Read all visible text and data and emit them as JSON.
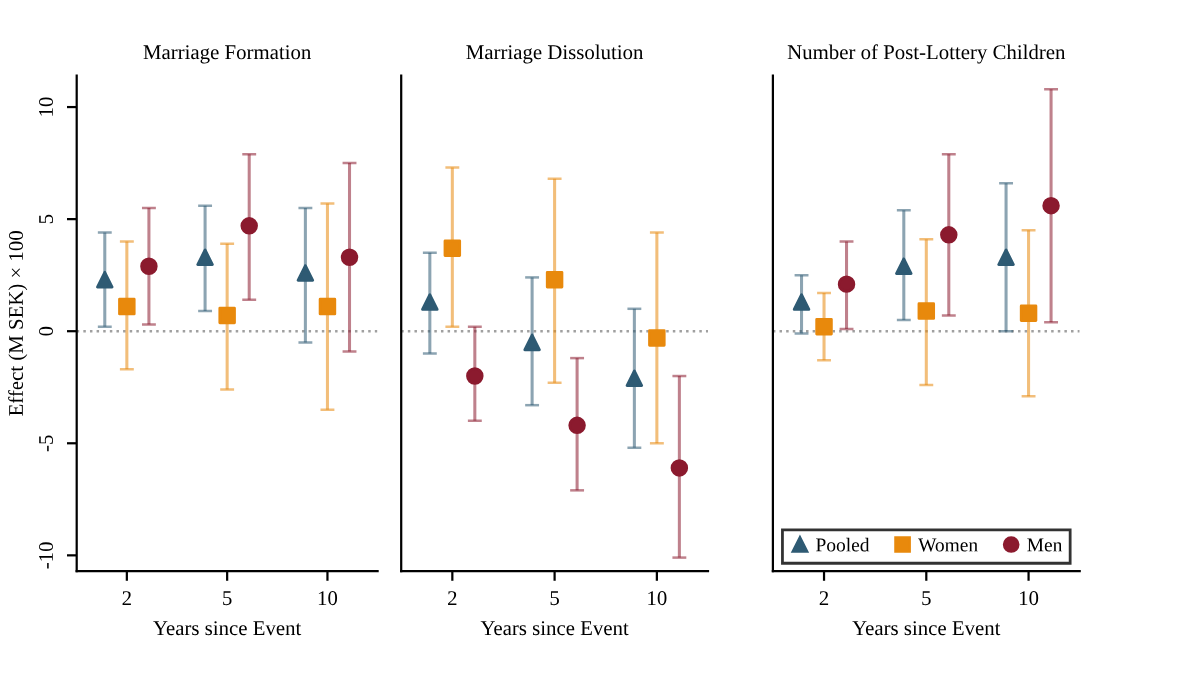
{
  "chart_data": [
    {
      "type": "scatter",
      "title": "Marriage Formation",
      "xlabel": "Years since Event",
      "ylabel": "Effect (M SEK) × 100",
      "categories": [
        "2",
        "5",
        "10"
      ],
      "ylim": [
        -10.7,
        11.4
      ],
      "yticks": [
        -10,
        -5,
        0,
        5,
        10
      ],
      "grid": false,
      "ref_lines": [
        {
          "axis": "y",
          "value": 0,
          "color": "#a0a0a0",
          "line_style": "dotted"
        }
      ],
      "series": [
        {
          "color": "#2e5a73",
          "marker": "triangle",
          "values": [
            2.3,
            3.3,
            2.6
          ],
          "errors": [
            [
              0.2,
              4.4
            ],
            [
              0.9,
              5.6
            ],
            [
              -0.5,
              5.5
            ]
          ]
        },
        {
          "color": "#e8890c",
          "marker": "square",
          "values": [
            1.1,
            0.7,
            1.1
          ],
          "errors": [
            [
              -1.7,
              4.0
            ],
            [
              -2.6,
              3.9
            ],
            [
              -3.5,
              5.7
            ]
          ]
        },
        {
          "color": "#8b1a2e",
          "marker": "circle",
          "values": [
            2.9,
            4.7,
            3.3
          ],
          "errors": [
            [
              0.3,
              5.5
            ],
            [
              1.4,
              7.9
            ],
            [
              -0.9,
              7.5
            ]
          ]
        }
      ]
    },
    {
      "type": "scatter",
      "title": "Marriage Dissolution",
      "xlabel": "Years since Event",
      "categories": [
        "2",
        "5",
        "10"
      ],
      "ylim": [
        -10.7,
        11.4
      ],
      "yticks": [
        -10,
        -5,
        0,
        5,
        10
      ],
      "tick_labels": "x",
      "grid": false,
      "ref_lines": [
        {
          "axis": "y",
          "value": 0,
          "color": "#a0a0a0",
          "line_style": "dotted"
        }
      ],
      "series": [
        {
          "color": "#2e5a73",
          "marker": "triangle",
          "values": [
            1.3,
            -0.5,
            -2.1
          ],
          "errors": [
            [
              -1.0,
              3.5
            ],
            [
              -3.3,
              2.4
            ],
            [
              -5.2,
              1.0
            ]
          ]
        },
        {
          "color": "#e8890c",
          "marker": "square",
          "values": [
            3.7,
            2.3,
            -0.3
          ],
          "errors": [
            [
              0.2,
              7.3
            ],
            [
              -2.3,
              6.8
            ],
            [
              -5.0,
              4.4
            ]
          ]
        },
        {
          "color": "#8b1a2e",
          "marker": "circle",
          "values": [
            -2.0,
            -4.2,
            -6.1
          ],
          "errors": [
            [
              -4.0,
              0.2
            ],
            [
              -7.1,
              -1.2
            ],
            [
              -10.1,
              -2.0
            ]
          ]
        }
      ]
    },
    {
      "type": "scatter",
      "title": "Number of Post-Lottery Children",
      "xlabel": "Years since Event",
      "categories": [
        "2",
        "5",
        "10"
      ],
      "ylim": [
        -10.7,
        11.4
      ],
      "yticks": [
        -10,
        -5,
        0,
        5,
        10
      ],
      "tick_labels": "x",
      "grid": false,
      "legend": "bottom",
      "ref_lines": [
        {
          "axis": "y",
          "value": 0,
          "color": "#a0a0a0",
          "line_style": "dotted"
        }
      ],
      "series": [
        {
          "name": "Pooled",
          "color": "#2e5a73",
          "marker": "triangle",
          "values": [
            1.3,
            2.9,
            3.3
          ],
          "errors": [
            [
              -0.1,
              2.5
            ],
            [
              0.5,
              5.4
            ],
            [
              0.0,
              6.6
            ]
          ]
        },
        {
          "name": "Women",
          "color": "#e8890c",
          "marker": "square",
          "values": [
            0.2,
            0.9,
            0.8
          ],
          "errors": [
            [
              -1.3,
              1.7
            ],
            [
              -2.4,
              4.1
            ],
            [
              -2.9,
              4.5
            ]
          ]
        },
        {
          "name": "Men",
          "color": "#8b1a2e",
          "marker": "circle",
          "values": [
            2.1,
            4.3,
            5.6
          ],
          "errors": [
            [
              0.1,
              4.0
            ],
            [
              0.7,
              7.9
            ],
            [
              0.4,
              10.8
            ]
          ]
        }
      ]
    }
  ]
}
